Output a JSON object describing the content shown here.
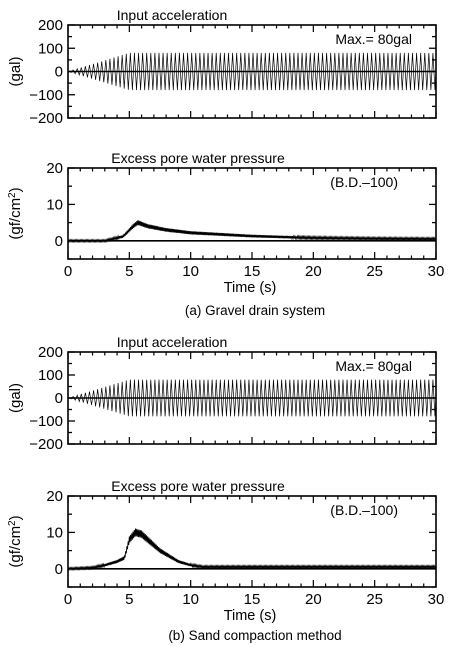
{
  "figure": {
    "captions": [
      "(a) Gravel drain system",
      "(b) Sand compaction method"
    ]
  },
  "chart_data": [
    {
      "type": "line",
      "title": "Input acceleration",
      "ylabel": "(gal)",
      "xlabel": "",
      "annotation": "Max.= 80gal",
      "xlim": [
        0,
        30
      ],
      "ylim": [
        -200,
        200
      ],
      "yticks": [
        200,
        100,
        0,
        -100,
        -200
      ],
      "xticks": [
        0,
        5,
        10,
        15,
        20,
        25,
        30
      ],
      "xtick_labels_shown": false,
      "grid": false,
      "series": [
        {
          "amplitude_profile": [
            [
              0,
              0
            ],
            [
              5,
              80
            ],
            [
              30,
              80
            ]
          ],
          "cycles_per_second": 3,
          "baseline": 0,
          "oscillating": true
        }
      ]
    },
    {
      "type": "line",
      "title": "Excess pore water pressure",
      "ylabel": "(gf/cm",
      "ylabel_superscript": "2",
      "ylabel_close": ")",
      "xlabel": "Time (s)",
      "annotation": "(B.D.–100)",
      "xlim": [
        0,
        30
      ],
      "ylim": [
        -5,
        20
      ],
      "yticks": [
        20,
        10,
        0
      ],
      "xticks": [
        0,
        5,
        10,
        15,
        20,
        25,
        30
      ],
      "xtick_labels_shown": true,
      "grid": false,
      "series": [
        {
          "x": [
            0,
            3,
            4.5,
            5.3,
            5.7,
            6.5,
            8,
            10,
            15,
            20,
            25,
            30
          ],
          "y": [
            0,
            0,
            1.2,
            4,
            5,
            4,
            3,
            2.2,
            1.3,
            0.8,
            0.6,
            0.5
          ]
        }
      ]
    },
    {
      "type": "line",
      "title": "Input acceleration",
      "ylabel": "(gal)",
      "xlabel": "",
      "annotation": "Max.= 80gal",
      "xlim": [
        0,
        30
      ],
      "ylim": [
        -200,
        200
      ],
      "yticks": [
        200,
        100,
        0,
        -100,
        -200
      ],
      "xticks": [
        0,
        5,
        10,
        15,
        20,
        25,
        30
      ],
      "xtick_labels_shown": false,
      "grid": false,
      "series": [
        {
          "amplitude_profile": [
            [
              0,
              0
            ],
            [
              5,
              80
            ],
            [
              30,
              80
            ]
          ],
          "cycles_per_second": 3,
          "baseline": 0,
          "oscillating": true
        }
      ]
    },
    {
      "type": "line",
      "title": "Excess pore water pressure",
      "ylabel": "(gf/cm",
      "ylabel_superscript": "2",
      "ylabel_close": ")",
      "xlabel": "Time (s)",
      "annotation": "(B.D.–100)",
      "xlim": [
        0,
        30
      ],
      "ylim": [
        -5,
        20
      ],
      "yticks": [
        20,
        10,
        0
      ],
      "xticks": [
        0,
        5,
        10,
        15,
        20,
        25,
        30
      ],
      "xtick_labels_shown": true,
      "grid": false,
      "series": [
        {
          "x": [
            0,
            2,
            3,
            4,
            4.6,
            5,
            5.5,
            6,
            6.5,
            7.5,
            9,
            10,
            11,
            13,
            30
          ],
          "y": [
            0,
            0.3,
            1,
            2,
            3,
            8,
            10,
            9.5,
            8,
            5,
            2,
            1,
            0.5,
            0.5,
            0.5
          ]
        }
      ]
    }
  ]
}
